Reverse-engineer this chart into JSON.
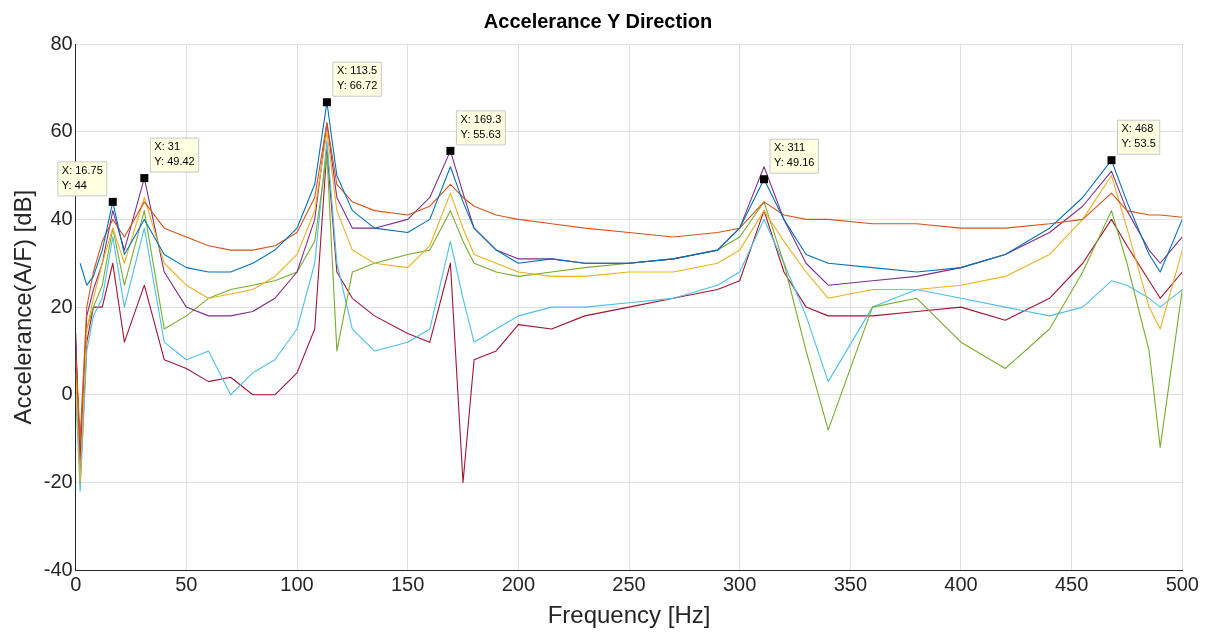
{
  "chart_data": {
    "type": "line",
    "title": "Accelerance Y Direction",
    "xlabel": "Frequency [Hz]",
    "ylabel": "Accelerance(A/F) [dB]",
    "x": [
      0,
      2,
      5,
      8,
      12,
      16.75,
      22,
      31,
      40,
      50,
      60,
      70,
      80,
      90,
      100,
      108,
      113.5,
      118,
      125,
      135,
      150,
      160,
      169.3,
      175,
      180,
      190,
      200,
      215,
      230,
      250,
      270,
      290,
      300,
      311,
      320,
      330,
      340,
      360,
      380,
      400,
      420,
      440,
      455,
      468,
      475,
      485,
      490,
      500
    ],
    "series": [
      {
        "color": "#0072bd",
        "values": [
          null,
          30,
          25,
          27,
          33,
          44,
          32,
          40,
          32,
          29,
          28,
          28,
          30,
          33,
          38,
          48,
          66.72,
          50,
          42,
          38,
          37,
          40,
          52,
          44,
          38,
          33,
          30,
          31,
          30,
          30,
          31,
          33,
          38,
          49.16,
          40,
          32,
          30,
          29,
          28,
          29,
          32,
          38,
          45,
          53.5,
          44,
          32,
          28,
          40
        ]
      },
      {
        "color": "#d95319",
        "values": [
          10,
          -10,
          20,
          28,
          35,
          40,
          36,
          44,
          38,
          36,
          34,
          33,
          33,
          34,
          37,
          45,
          62,
          48,
          44,
          42,
          41,
          43,
          48,
          45,
          43,
          41,
          40,
          39,
          38,
          37,
          36,
          37,
          38,
          44,
          41,
          40,
          40,
          39,
          39,
          38,
          38,
          39,
          40,
          46,
          42,
          41,
          41,
          40.5
        ]
      },
      {
        "color": "#edb120",
        "values": [
          5,
          -20,
          15,
          22,
          30,
          38,
          30,
          45,
          30,
          25,
          22,
          23,
          24,
          27,
          32,
          42,
          60,
          42,
          33,
          30,
          29,
          34,
          46,
          38,
          32,
          30,
          28,
          27,
          27,
          28,
          28,
          30,
          33,
          42,
          35,
          28,
          22,
          24,
          24,
          25,
          27,
          32,
          40,
          50,
          38,
          20,
          15,
          33
        ]
      },
      {
        "color": "#7e2f8e",
        "values": [
          12,
          -15,
          18,
          24,
          30,
          42,
          33,
          49.42,
          28,
          20,
          18,
          18,
          19,
          22,
          28,
          40,
          62,
          45,
          38,
          38,
          40,
          45,
          55.63,
          46,
          38,
          33,
          31,
          31,
          30,
          30,
          31,
          33,
          38,
          52,
          40,
          30,
          25,
          26,
          27,
          29,
          32,
          37,
          43,
          51,
          42,
          33,
          30,
          36
        ]
      },
      {
        "color": "#77ac30",
        "values": [
          8,
          -12,
          15,
          20,
          25,
          38,
          25,
          42,
          15,
          18,
          22,
          24,
          25,
          26,
          28,
          35,
          55,
          10,
          28,
          30,
          32,
          33,
          42,
          35,
          30,
          28,
          27,
          28,
          29,
          30,
          31,
          33,
          36,
          44,
          30,
          10,
          -8,
          20,
          22,
          12,
          6,
          15,
          28,
          42,
          30,
          10,
          -12,
          24
        ]
      },
      {
        "color": "#4dbeee",
        "values": [
          0,
          -22,
          10,
          18,
          22,
          36,
          20,
          38,
          12,
          8,
          10,
          0,
          5,
          8,
          15,
          30,
          58,
          30,
          15,
          10,
          12,
          15,
          35,
          22,
          12,
          15,
          18,
          20,
          20,
          21,
          22,
          25,
          28,
          40,
          30,
          18,
          3,
          20,
          24,
          22,
          20,
          18,
          20,
          26,
          25,
          22,
          20,
          24
        ]
      },
      {
        "color": "#a2142f",
        "values": [
          14,
          -20,
          12,
          20,
          20,
          30,
          12,
          25,
          8,
          6,
          3,
          4,
          0,
          0,
          5,
          15,
          56,
          28,
          22,
          18,
          14,
          12,
          30,
          -20,
          8,
          10,
          16,
          15,
          18,
          20,
          22,
          24,
          26,
          42,
          28,
          20,
          18,
          18,
          19,
          20,
          17,
          22,
          30,
          40,
          34,
          26,
          22,
          28
        ]
      }
    ],
    "xlim": [
      0,
      500
    ],
    "xticks": [
      0,
      50,
      100,
      150,
      200,
      250,
      300,
      350,
      400,
      450,
      500
    ],
    "ylim": [
      -40,
      80
    ],
    "yticks": [
      -40,
      -20,
      0,
      20,
      40,
      60,
      80
    ],
    "grid": true,
    "marker": "none",
    "line_style": "solid",
    "annotations": [
      {
        "text": "X: 16.75\nY: 44",
        "x": 16.75,
        "y": 44
      },
      {
        "text": "X: 31\nY: 49.42",
        "x": 31,
        "y": 49.42
      },
      {
        "text": "X: 113.5\nY: 66.72",
        "x": 113.5,
        "y": 66.72
      },
      {
        "text": "X: 169.3\nY: 55.63",
        "x": 169.3,
        "y": 55.63
      },
      {
        "text": "X: 311\nY: 49.16",
        "x": 311,
        "y": 49.16
      },
      {
        "text": "X: 468\nY: 53.5",
        "x": 468,
        "y": 53.5
      }
    ]
  }
}
